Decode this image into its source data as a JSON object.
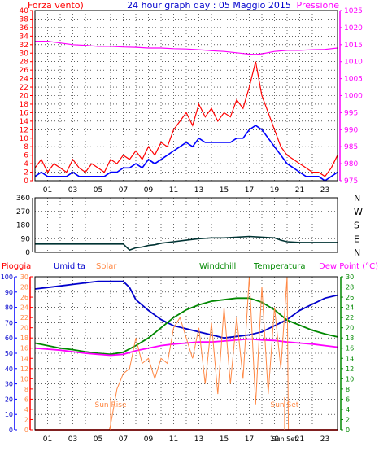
{
  "header": {
    "left_label": "Forza vento)",
    "title": "24 hour graph day : 05 Maggio 2015",
    "right_label": "Pressione"
  },
  "colors": {
    "wind": "#ff0000",
    "wind_avg": "#0000ff",
    "pressure": "#ff00ff",
    "wind_dir": "#003333",
    "left_axis_top": "#ff0000",
    "right_axis_top": "#ff00ff",
    "humidity": "#0000cc",
    "solar": "#ff8844",
    "temperature": "#008800",
    "dew_point": "#ff00ff",
    "rain": "#ff0000",
    "windchill": "#008800",
    "grid": "#000000",
    "axis": "#0000ff"
  },
  "chart_data": [
    {
      "name": "wind-pressure",
      "type": "line",
      "x_ticks": [
        "01",
        "03",
        "05",
        "07",
        "09",
        "11",
        "13",
        "15",
        "17",
        "19",
        "21",
        "23"
      ],
      "y_left": {
        "label": "Forza vento)",
        "ticks": [
          0,
          2,
          4,
          6,
          8,
          10,
          12,
          14,
          16,
          18,
          20,
          22,
          24,
          26,
          28,
          30,
          32,
          34,
          36,
          38,
          40
        ],
        "range": [
          0,
          40
        ]
      },
      "y_right": {
        "label": "Pressione",
        "ticks": [
          975,
          980,
          985,
          990,
          995,
          1000,
          1005,
          1010,
          1015,
          1020,
          1025
        ],
        "range": [
          975,
          1025
        ]
      },
      "x_range": [
        0,
        24
      ],
      "series": [
        {
          "key": "wind",
          "axis": "left",
          "x": [
            0,
            0.5,
            1,
            1.5,
            2,
            2.5,
            3,
            3.5,
            4,
            4.5,
            5,
            5.5,
            6,
            6.5,
            7,
            7.5,
            8,
            8.5,
            9,
            9.5,
            10,
            10.5,
            11,
            11.5,
            12,
            12.5,
            13,
            13.5,
            14,
            14.5,
            15,
            15.5,
            16,
            16.5,
            17,
            17.5,
            18,
            18.5,
            19,
            19.5,
            20,
            20.5,
            21,
            21.5,
            22,
            22.5,
            23,
            23.5,
            24
          ],
          "y": [
            3,
            5,
            2,
            4,
            3,
            2,
            5,
            3,
            2,
            4,
            3,
            2,
            5,
            4,
            6,
            5,
            7,
            5,
            8,
            6,
            9,
            8,
            12,
            14,
            16,
            13,
            18,
            15,
            17,
            14,
            16,
            15,
            19,
            17,
            22,
            28,
            20,
            16,
            12,
            8,
            6,
            5,
            4,
            3,
            2,
            2,
            1,
            3,
            6
          ]
        },
        {
          "key": "wind_avg",
          "axis": "left",
          "x": [
            0,
            0.5,
            1,
            1.5,
            2,
            2.5,
            3,
            3.5,
            4,
            4.5,
            5,
            5.5,
            6,
            6.5,
            7,
            7.5,
            8,
            8.5,
            9,
            9.5,
            10,
            10.5,
            11,
            11.5,
            12,
            12.5,
            13,
            13.5,
            14,
            14.5,
            15,
            15.5,
            16,
            16.5,
            17,
            17.5,
            18,
            18.5,
            19,
            19.5,
            20,
            20.5,
            21,
            21.5,
            22,
            22.5,
            23,
            23.5,
            24
          ],
          "y": [
            1,
            2,
            1,
            1,
            1,
            1,
            2,
            1,
            1,
            1,
            1,
            1,
            2,
            2,
            3,
            3,
            4,
            3,
            5,
            4,
            5,
            6,
            7,
            8,
            9,
            8,
            10,
            9,
            9,
            9,
            9,
            9,
            10,
            10,
            12,
            13,
            12,
            10,
            8,
            6,
            4,
            3,
            2,
            1,
            1,
            1,
            0,
            1,
            2
          ]
        },
        {
          "key": "pressure",
          "axis": "right",
          "x": [
            0,
            1,
            2,
            3,
            4,
            5,
            6,
            7,
            8,
            9,
            10,
            11,
            12,
            13,
            14,
            15,
            16,
            16.5,
            17,
            17.5,
            18,
            19,
            20,
            21,
            22,
            23,
            24
          ],
          "y": [
            1016,
            1016,
            1015.5,
            1015,
            1014.8,
            1014.5,
            1014.5,
            1014.3,
            1014.2,
            1014,
            1014,
            1013.8,
            1013.7,
            1013.5,
            1013.2,
            1013,
            1012.6,
            1012.4,
            1012.2,
            1012.1,
            1012.3,
            1013,
            1013.3,
            1013.3,
            1013.5,
            1013.6,
            1014
          ]
        }
      ]
    },
    {
      "name": "wind-direction",
      "type": "line",
      "x_range": [
        0,
        24
      ],
      "y_left": {
        "ticks": [
          0,
          90,
          180,
          270,
          360
        ],
        "range": [
          0,
          360
        ]
      },
      "y_right": {
        "ticks": [
          "N",
          "W",
          "S",
          "E",
          "N"
        ]
      },
      "series": [
        {
          "key": "wind_dir",
          "x": [
            0,
            1,
            2,
            3,
            4,
            5,
            6,
            7,
            7.5,
            8,
            8.5,
            9,
            9.5,
            10,
            11,
            12,
            13,
            14,
            15,
            16,
            17,
            18,
            19,
            19.5,
            20,
            21,
            22,
            23,
            24
          ],
          "y": [
            55,
            55,
            55,
            55,
            55,
            55,
            55,
            55,
            15,
            30,
            35,
            45,
            50,
            60,
            70,
            80,
            90,
            95,
            95,
            100,
            105,
            100,
            95,
            80,
            70,
            65,
            65,
            65,
            65
          ]
        }
      ]
    },
    {
      "name": "weather",
      "type": "line",
      "x_range": [
        0,
        24
      ],
      "x_ticks": [
        "01",
        "03",
        "05",
        "07",
        "09",
        "11",
        "13",
        "15",
        "17",
        "19",
        "21",
        "23"
      ],
      "legend": [
        "Pioggia",
        "Umidita",
        "Solar",
        "Windchill",
        "Temperatura",
        "Dew Point (°C)"
      ],
      "y_left_humidity": {
        "ticks": [
          0,
          10,
          20,
          30,
          40,
          50,
          60,
          70,
          80,
          90,
          100
        ],
        "range": [
          0,
          100
        ]
      },
      "y_left_rain": {
        "ticks": [
          0,
          2,
          4,
          6,
          8,
          10,
          12,
          14,
          16,
          18,
          20,
          22,
          24,
          26,
          28,
          30
        ],
        "range": [
          0,
          30
        ]
      },
      "y_right": {
        "ticks": [
          0,
          2,
          4,
          6,
          8,
          10,
          12,
          14,
          16,
          18,
          20,
          22,
          24,
          26,
          28,
          30
        ],
        "range": [
          0,
          30
        ]
      },
      "annotations": [
        {
          "text": "Sun Rise",
          "x": 6
        },
        {
          "text": "Sun Set",
          "x": 19.8
        }
      ],
      "series": [
        {
          "key": "humidity",
          "axis": "humidity",
          "x": [
            0,
            1,
            2,
            3,
            4,
            5,
            6,
            7,
            7.5,
            8,
            9,
            10,
            11,
            12,
            13,
            14,
            15,
            16,
            17,
            18,
            19,
            20,
            21,
            22,
            23,
            24
          ],
          "y": [
            92,
            93,
            94,
            95,
            96,
            97,
            97,
            97,
            93,
            85,
            78,
            72,
            68,
            66,
            64,
            62,
            60,
            61,
            62,
            64,
            68,
            72,
            78,
            82,
            86,
            88
          ]
        },
        {
          "key": "temperature",
          "axis": "right",
          "x": [
            0,
            1,
            2,
            3,
            4,
            5,
            6,
            7,
            8,
            9,
            10,
            11,
            12,
            13,
            14,
            15,
            16,
            17,
            18,
            19,
            20,
            21,
            22,
            23,
            24
          ],
          "y": [
            17,
            16.5,
            16,
            15.7,
            15.3,
            15,
            14.8,
            15.2,
            16.5,
            18,
            20,
            22,
            23.5,
            24.5,
            25.2,
            25.5,
            25.8,
            25.8,
            25,
            23.5,
            21.5,
            20.5,
            19.5,
            18.8,
            18.2
          ]
        },
        {
          "key": "dew_point",
          "axis": "right",
          "x": [
            0,
            1,
            2,
            3,
            4,
            5,
            6,
            7,
            8,
            9,
            10,
            11,
            12,
            13,
            14,
            15,
            16,
            17,
            18,
            19,
            20,
            21,
            22,
            23,
            24
          ],
          "y": [
            16,
            15.8,
            15.6,
            15.3,
            15,
            14.8,
            14.6,
            14.8,
            15.5,
            16,
            16.5,
            16.8,
            17,
            17.2,
            17.2,
            17.4,
            17.6,
            17.8,
            17.6,
            17.5,
            17.2,
            17,
            16.8,
            16.5,
            16.2
          ]
        },
        {
          "key": "solar",
          "axis": "right",
          "x": [
            0,
            5.9,
            6,
            6.5,
            7,
            7.5,
            8,
            8.5,
            9,
            9.5,
            10,
            10.5,
            11,
            11.5,
            12,
            12.5,
            13,
            13.5,
            14,
            14.5,
            15,
            15.5,
            16,
            16.5,
            17,
            17.5,
            18,
            18.5,
            19,
            19.5,
            20,
            20.1,
            24
          ],
          "y": [
            0,
            0,
            1,
            8,
            11,
            12,
            18,
            13,
            14,
            10,
            14,
            13,
            20,
            22,
            18,
            14,
            20,
            9,
            21,
            7,
            24,
            9,
            22,
            10,
            30,
            5,
            28,
            7,
            24,
            12,
            30,
            0,
            0
          ]
        },
        {
          "key": "rain",
          "axis": "right",
          "x": [
            0,
            24
          ],
          "y": [
            0,
            0
          ]
        }
      ]
    }
  ]
}
